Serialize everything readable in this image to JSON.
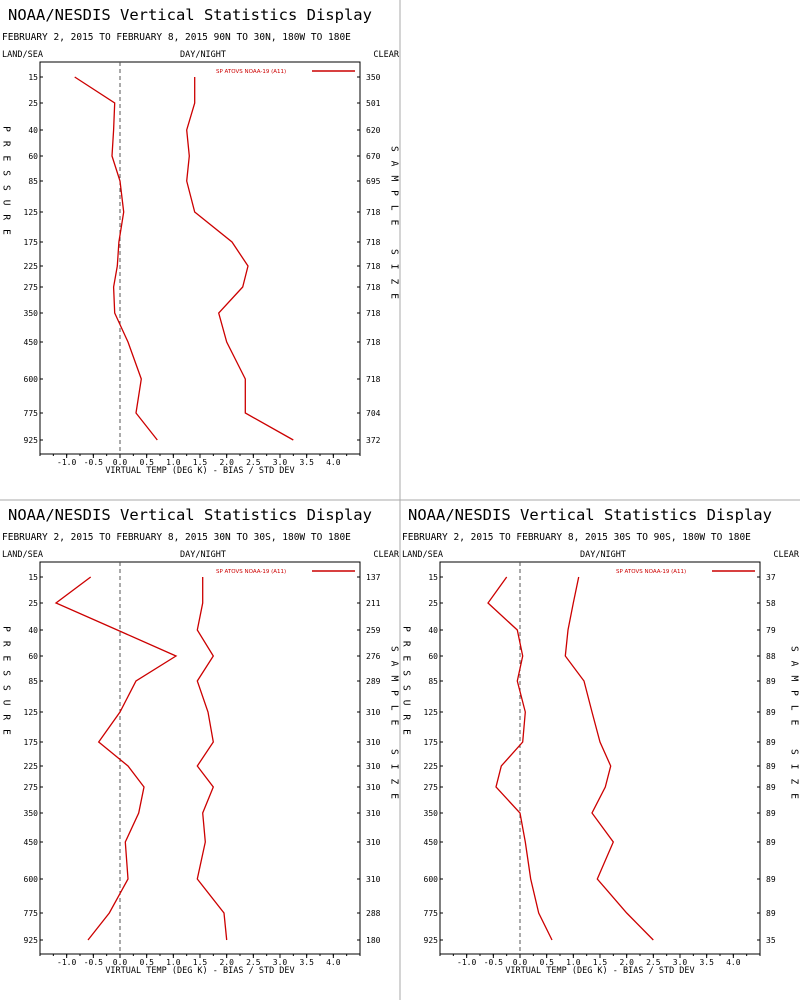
{
  "chart_data": [
    {
      "type": "line",
      "title": "NOAA/NESDIS Vertical Statistics Display",
      "subtitle": "FEBRUARY 2, 2015 TO FEBRUARY 8, 2015  90N TO 30N, 180W TO 180E",
      "top_left_label": "LAND/SEA",
      "top_center_label": "DAY/NIGHT",
      "top_right_label": "CLEAR",
      "ylabel": "PRESSURE",
      "right_axis_label": "SAMPLE SIZE",
      "xlabel": "VIRTUAL TEMP (DEG K) - BIAS / STD DEV",
      "legend": "SP ATOVS NOAA-19 (A11)",
      "pressure_levels": [
        "15",
        "25",
        "40",
        "60",
        "85",
        "125",
        "175",
        "225",
        "275",
        "350",
        "450",
        "600",
        "775",
        "925"
      ],
      "sample_size": [
        "350",
        "501",
        "620",
        "670",
        "695",
        "718",
        "718",
        "718",
        "718",
        "718",
        "718",
        "718",
        "704",
        "372"
      ],
      "x_ticks": [
        "-1.0",
        "-0.5",
        "0.0",
        "0.5",
        "1.0",
        "1.5",
        "2.0",
        "2.5",
        "3.0",
        "3.5",
        "4.0"
      ],
      "xlim": [
        -1.5,
        4.5
      ],
      "series": [
        {
          "values": [
            -0.85,
            -0.1,
            -0.12,
            -0.15,
            0.0,
            0.07,
            -0.02,
            -0.05,
            -0.12,
            -0.1,
            0.15,
            0.4,
            0.3,
            0.7
          ]
        },
        {
          "values": [
            1.4,
            1.4,
            1.25,
            1.3,
            1.25,
            1.4,
            2.1,
            2.4,
            2.3,
            1.85,
            2.0,
            2.35,
            2.35,
            3.25
          ]
        }
      ]
    },
    {
      "type": "line",
      "title": "NOAA/NESDIS Vertical Statistics Display",
      "subtitle": "FEBRUARY 2, 2015 TO FEBRUARY 8, 2015  30N TO 30S, 180W TO 180E",
      "top_left_label": "LAND/SEA",
      "top_center_label": "DAY/NIGHT",
      "top_right_label": "CLEAR",
      "ylabel": "PRESSURE",
      "right_axis_label": "SAMPLE SIZE",
      "xlabel": "VIRTUAL TEMP (DEG K) - BIAS / STD DEV",
      "legend": "SP ATOVS NOAA-19 (A11)",
      "pressure_levels": [
        "15",
        "25",
        "40",
        "60",
        "85",
        "125",
        "175",
        "225",
        "275",
        "350",
        "450",
        "600",
        "775",
        "925"
      ],
      "sample_size": [
        "137",
        "211",
        "259",
        "276",
        "289",
        "310",
        "310",
        "310",
        "310",
        "310",
        "310",
        "310",
        "288",
        "180"
      ],
      "x_ticks": [
        "-1.0",
        "-0.5",
        "0.0",
        "0.5",
        "1.0",
        "1.5",
        "2.0",
        "2.5",
        "3.0",
        "3.5",
        "4.0"
      ],
      "xlim": [
        -1.5,
        4.5
      ],
      "series": [
        {
          "values": [
            -0.55,
            -1.2,
            -0.05,
            1.05,
            0.3,
            0.0,
            -0.4,
            0.15,
            0.45,
            0.35,
            0.1,
            0.15,
            -0.2,
            -0.6
          ]
        },
        {
          "values": [
            1.55,
            1.55,
            1.45,
            1.75,
            1.45,
            1.65,
            1.75,
            1.45,
            1.75,
            1.55,
            1.6,
            1.45,
            1.95,
            2.0
          ]
        }
      ]
    },
    {
      "type": "line",
      "title": "NOAA/NESDIS Vertical Statistics Display",
      "subtitle": "FEBRUARY 2, 2015 TO FEBRUARY 8, 2015  30S TO 90S, 180W TO 180E",
      "top_left_label": "LAND/SEA",
      "top_center_label": "DAY/NIGHT",
      "top_right_label": "CLEAR",
      "ylabel": "PRESSURE",
      "right_axis_label": "SAMPLE SIZE",
      "xlabel": "VIRTUAL TEMP (DEG K) - BIAS / STD DEV",
      "legend": "SP ATOVS NOAA-19 (A11)",
      "pressure_levels": [
        "15",
        "25",
        "40",
        "60",
        "85",
        "125",
        "175",
        "225",
        "275",
        "350",
        "450",
        "600",
        "775",
        "925"
      ],
      "sample_size": [
        "37",
        "58",
        "79",
        "88",
        "89",
        "89",
        "89",
        "89",
        "89",
        "89",
        "89",
        "89",
        "89",
        "35"
      ],
      "x_ticks": [
        "-1.0",
        "-0.5",
        "0.0",
        "0.5",
        "1.0",
        "1.5",
        "2.0",
        "2.5",
        "3.0",
        "3.5",
        "4.0"
      ],
      "xlim": [
        -1.5,
        4.5
      ],
      "series": [
        {
          "values": [
            -0.25,
            -0.6,
            -0.05,
            0.05,
            -0.05,
            0.1,
            0.05,
            -0.35,
            -0.45,
            0.0,
            0.1,
            0.2,
            0.35,
            0.6
          ]
        },
        {
          "values": [
            1.1,
            1.0,
            0.9,
            0.85,
            1.2,
            1.35,
            1.5,
            1.7,
            1.6,
            1.35,
            1.75,
            1.45,
            2.0,
            2.5
          ]
        }
      ]
    }
  ]
}
